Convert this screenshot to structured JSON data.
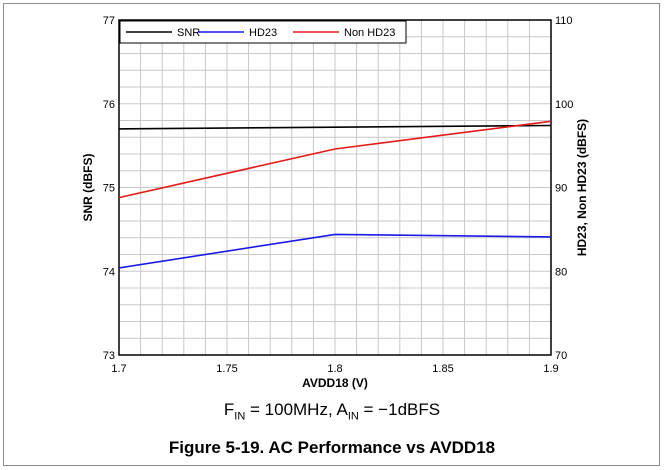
{
  "chart_data": {
    "type": "line",
    "x": [
      1.7,
      1.8,
      1.9
    ],
    "series": [
      {
        "name": "SNR",
        "axis": "left",
        "color": "#000000",
        "values": [
          75.7,
          75.72,
          75.74
        ]
      },
      {
        "name": "HD23",
        "axis": "right",
        "color": "#1a1ae6",
        "values": [
          80.4,
          84.4,
          84.1
        ]
      },
      {
        "name": "Non HD23",
        "axis": "right",
        "color": "#e61a1a",
        "values": [
          88.8,
          94.6,
          97.9
        ]
      }
    ],
    "xlabel": "AVDD18 (V)",
    "ylabel": "SNR (dBFS)",
    "y2label": "HD23, Non HD23 (dBFS)",
    "xlim": [
      1.7,
      1.9
    ],
    "ylim": [
      73,
      77
    ],
    "y2lim": [
      70,
      110
    ],
    "xticks": [
      "1.7",
      "1.75",
      "1.8",
      "1.85",
      "1.9"
    ],
    "yticks": [
      "73",
      "74",
      "75",
      "76",
      "77"
    ],
    "y2ticks": [
      "70",
      "80",
      "90",
      "100",
      "110"
    ],
    "grid": true,
    "legend_position": "top-left"
  },
  "conditions": {
    "f_sym": "F",
    "f_sub": "IN",
    "f_rest": " = 100MHz, ",
    "a_sym": "A",
    "a_sub": "IN",
    "a_rest": " = −1dBFS"
  },
  "caption": "Figure 5-19. AC Performance vs AVDD18"
}
